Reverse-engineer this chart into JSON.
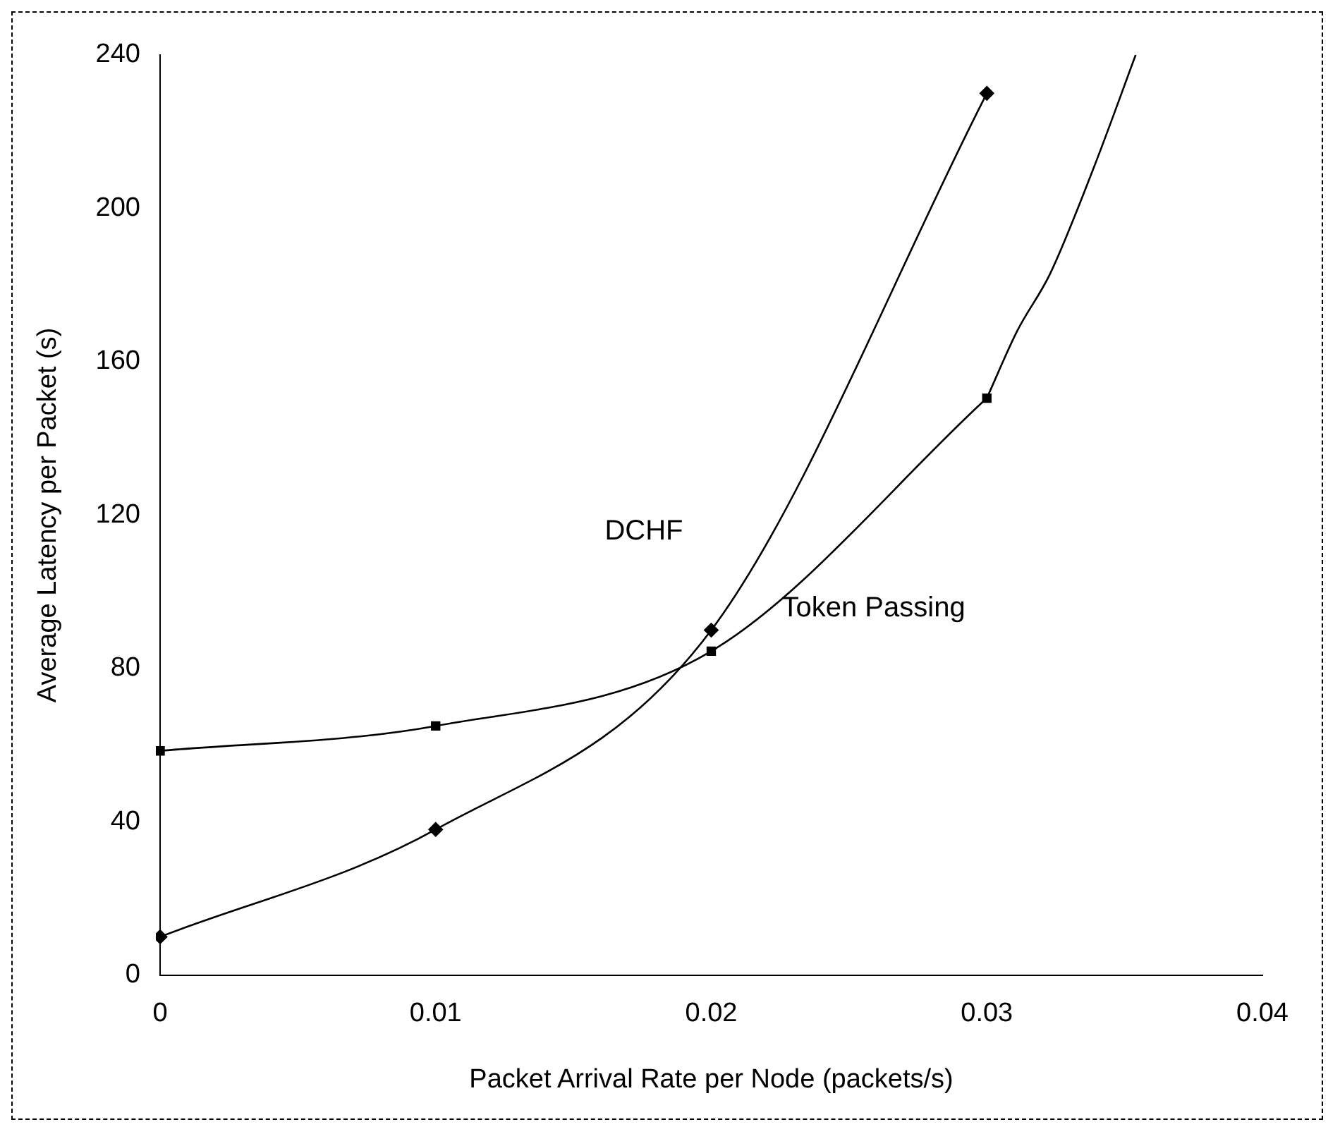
{
  "chart_data": {
    "type": "line",
    "xlabel": "Packet Arrival Rate per Node (packets/s)",
    "ylabel": "Average Latency per Packet (s)",
    "xlim": [
      0,
      0.04
    ],
    "xticks": [
      0,
      0.01,
      0.02,
      0.03,
      0.04
    ],
    "ylim": [
      0,
      240
    ],
    "yticks": [
      0,
      40,
      80,
      120,
      160,
      200,
      240
    ],
    "grid": false,
    "legend": false,
    "series": [
      {
        "name": "DCHF",
        "color": "#000000",
        "marker": "diamond",
        "x": [
          0,
          0.01,
          0.02,
          0.03
        ],
        "values": [
          10,
          38,
          90,
          230
        ]
      },
      {
        "name": "Token Passing",
        "color": "#000000",
        "marker": "square",
        "x": [
          0,
          0.01,
          0.02,
          0.03
        ],
        "values": [
          58.5,
          65,
          84.5,
          150.5
        ]
      },
      {
        "color": "#000000",
        "marker": "none",
        "x": [
          0.03,
          0.0311,
          0.0323,
          0.0339,
          0.0354
        ],
        "values": [
          150.5,
          168,
          183,
          211,
          240
        ]
      }
    ]
  }
}
